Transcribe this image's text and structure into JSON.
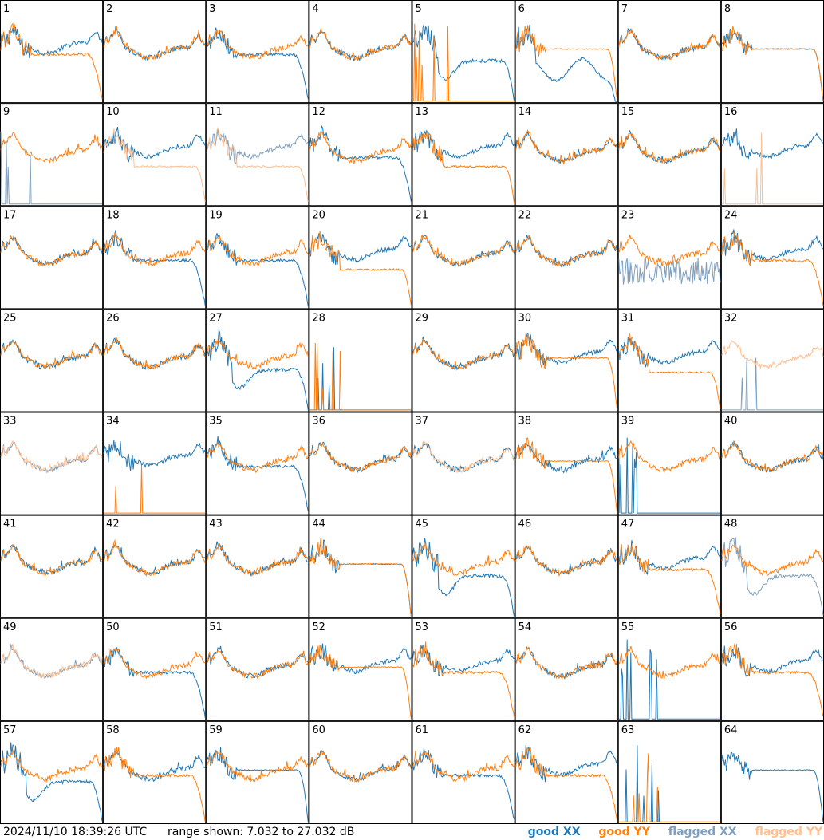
{
  "footer": {
    "timestamp": "2024/11/10 18:39:26 UTC",
    "range": "range shown: 7.032 to 27.032 dB"
  },
  "legend": [
    {
      "label": "good XX",
      "color": "#1f77b4"
    },
    {
      "label": "good YY",
      "color": "#ff7f0e"
    },
    {
      "label": "flagged XX",
      "color": "#7f9fbf"
    },
    {
      "label": "flagged YY",
      "color": "#ffbf8f"
    }
  ],
  "chart_data": {
    "type": "line",
    "grid": {
      "rows": 8,
      "cols": 8
    },
    "yrange_db": [
      7.032,
      27.032
    ],
    "panels": [
      {
        "id": "1",
        "xx": "good",
        "yy": "good",
        "xx_shape": "wide",
        "yy_shape": "rolloff"
      },
      {
        "id": "2",
        "xx": "good",
        "yy": "good",
        "xx_shape": "normal",
        "yy_shape": "normal"
      },
      {
        "id": "3",
        "xx": "good",
        "yy": "good",
        "xx_shape": "rolloff",
        "yy_shape": "normal"
      },
      {
        "id": "4",
        "xx": "good",
        "yy": "good",
        "xx_shape": "normal",
        "yy_shape": "normal"
      },
      {
        "id": "5",
        "xx": "good",
        "yy": "good",
        "xx_shape": "dip",
        "yy_shape": "dead"
      },
      {
        "id": "6",
        "xx": "good",
        "yy": "good",
        "xx_shape": "wavy",
        "yy_shape": "flat"
      },
      {
        "id": "7",
        "xx": "good",
        "yy": "good",
        "xx_shape": "normal",
        "yy_shape": "normal"
      },
      {
        "id": "8",
        "xx": "good",
        "yy": "good",
        "xx_shape": "flat",
        "yy_shape": "flat"
      },
      {
        "id": "9",
        "xx": "flagged",
        "yy": "good",
        "xx_shape": "dead",
        "yy_shape": "normal"
      },
      {
        "id": "10",
        "xx": "good",
        "yy": "flagged",
        "xx_shape": "wide",
        "yy_shape": "lowflat"
      },
      {
        "id": "11",
        "xx": "flagged",
        "yy": "flagged",
        "xx_shape": "wide",
        "yy_shape": "lowflat"
      },
      {
        "id": "12",
        "xx": "good",
        "yy": "good",
        "xx_shape": "rolloff",
        "yy_shape": "normal"
      },
      {
        "id": "13",
        "xx": "good",
        "yy": "good",
        "xx_shape": "wide",
        "yy_shape": "lowflat"
      },
      {
        "id": "14",
        "xx": "good",
        "yy": "good",
        "xx_shape": "normal",
        "yy_shape": "normal"
      },
      {
        "id": "15",
        "xx": "good",
        "yy": "good",
        "xx_shape": "normal",
        "yy_shape": "normal"
      },
      {
        "id": "16",
        "xx": "good",
        "yy": "flagged",
        "xx_shape": "wide",
        "yy_shape": "dead"
      },
      {
        "id": "17",
        "xx": "good",
        "yy": "good",
        "xx_shape": "normal",
        "yy_shape": "normal"
      },
      {
        "id": "18",
        "xx": "good",
        "yy": "good",
        "xx_shape": "rolloff",
        "yy_shape": "normal"
      },
      {
        "id": "19",
        "xx": "good",
        "yy": "good",
        "xx_shape": "rolloff",
        "yy_shape": "normal"
      },
      {
        "id": "20",
        "xx": "good",
        "yy": "good",
        "xx_shape": "wide",
        "yy_shape": "lowflat"
      },
      {
        "id": "21",
        "xx": "good",
        "yy": "good",
        "xx_shape": "normal",
        "yy_shape": "normal"
      },
      {
        "id": "22",
        "xx": "good",
        "yy": "good",
        "xx_shape": "normal",
        "yy_shape": "normal"
      },
      {
        "id": "23",
        "xx": "flagged",
        "yy": "good",
        "xx_shape": "noise",
        "yy_shape": "normal"
      },
      {
        "id": "24",
        "xx": "good",
        "yy": "good",
        "xx_shape": "wide",
        "yy_shape": "rolloff"
      },
      {
        "id": "25",
        "xx": "good",
        "yy": "good",
        "xx_shape": "normal",
        "yy_shape": "normal"
      },
      {
        "id": "26",
        "xx": "good",
        "yy": "good",
        "xx_shape": "normal",
        "yy_shape": "normal"
      },
      {
        "id": "27",
        "xx": "good",
        "yy": "good",
        "xx_shape": "dip",
        "yy_shape": "normal"
      },
      {
        "id": "28",
        "xx": "good",
        "yy": "good",
        "xx_shape": "dead",
        "yy_shape": "dead"
      },
      {
        "id": "29",
        "xx": "good",
        "yy": "good",
        "xx_shape": "normal",
        "yy_shape": "normal"
      },
      {
        "id": "30",
        "xx": "good",
        "yy": "good",
        "xx_shape": "wide",
        "yy_shape": "flat"
      },
      {
        "id": "31",
        "xx": "good",
        "yy": "good",
        "xx_shape": "wide",
        "yy_shape": "lowflat"
      },
      {
        "id": "32",
        "xx": "flagged",
        "yy": "flagged",
        "xx_shape": "dead",
        "yy_shape": "normal"
      },
      {
        "id": "33",
        "xx": "flagged",
        "yy": "flagged",
        "xx_shape": "normal",
        "yy_shape": "normal"
      },
      {
        "id": "34",
        "xx": "good",
        "yy": "good",
        "xx_shape": "wide",
        "yy_shape": "dead"
      },
      {
        "id": "35",
        "xx": "good",
        "yy": "good",
        "xx_shape": "rolloff",
        "yy_shape": "normal"
      },
      {
        "id": "36",
        "xx": "good",
        "yy": "good",
        "xx_shape": "normal",
        "yy_shape": "normal"
      },
      {
        "id": "37",
        "xx": "good",
        "yy": "flagged",
        "xx_shape": "normal",
        "yy_shape": "normal"
      },
      {
        "id": "38",
        "xx": "good",
        "yy": "good",
        "xx_shape": "normal",
        "yy_shape": "flat"
      },
      {
        "id": "39",
        "xx": "good",
        "yy": "good",
        "xx_shape": "dead",
        "yy_shape": "normal"
      },
      {
        "id": "40",
        "xx": "good",
        "yy": "good",
        "xx_shape": "normal",
        "yy_shape": "normal"
      },
      {
        "id": "41",
        "xx": "good",
        "yy": "good",
        "xx_shape": "normal",
        "yy_shape": "normal"
      },
      {
        "id": "42",
        "xx": "good",
        "yy": "good",
        "xx_shape": "normal",
        "yy_shape": "normal"
      },
      {
        "id": "43",
        "xx": "good",
        "yy": "good",
        "xx_shape": "normal",
        "yy_shape": "normal"
      },
      {
        "id": "44",
        "xx": "good",
        "yy": "good",
        "xx_shape": "flat",
        "yy_shape": "flat"
      },
      {
        "id": "45",
        "xx": "good",
        "yy": "good",
        "xx_shape": "dip",
        "yy_shape": "normal"
      },
      {
        "id": "46",
        "xx": "good",
        "yy": "good",
        "xx_shape": "normal",
        "yy_shape": "normal"
      },
      {
        "id": "47",
        "xx": "good",
        "yy": "good",
        "xx_shape": "wide",
        "yy_shape": "rolloff"
      },
      {
        "id": "48",
        "xx": "flagged",
        "yy": "good",
        "xx_shape": "dip",
        "yy_shape": "normal"
      },
      {
        "id": "49",
        "xx": "flagged",
        "yy": "flagged",
        "xx_shape": "normal",
        "yy_shape": "normal"
      },
      {
        "id": "50",
        "xx": "good",
        "yy": "good",
        "xx_shape": "rolloff",
        "yy_shape": "normal"
      },
      {
        "id": "51",
        "xx": "good",
        "yy": "good",
        "xx_shape": "normal",
        "yy_shape": "normal"
      },
      {
        "id": "52",
        "xx": "good",
        "yy": "good",
        "xx_shape": "wide",
        "yy_shape": "flat"
      },
      {
        "id": "53",
        "xx": "good",
        "yy": "good",
        "xx_shape": "wide",
        "yy_shape": "rolloff"
      },
      {
        "id": "54",
        "xx": "good",
        "yy": "good",
        "xx_shape": "normal",
        "yy_shape": "normal"
      },
      {
        "id": "55",
        "xx": "good",
        "yy": "good",
        "xx_shape": "dead",
        "yy_shape": "normal"
      },
      {
        "id": "56",
        "xx": "good",
        "yy": "good",
        "xx_shape": "wide",
        "yy_shape": "rolloff"
      },
      {
        "id": "57",
        "xx": "good",
        "yy": "good",
        "xx_shape": "dip",
        "yy_shape": "normal"
      },
      {
        "id": "58",
        "xx": "good",
        "yy": "good",
        "xx_shape": "normal",
        "yy_shape": "rolloff"
      },
      {
        "id": "59",
        "xx": "good",
        "yy": "good",
        "xx_shape": "flat",
        "yy_shape": "normal"
      },
      {
        "id": "60",
        "xx": "good",
        "yy": "good",
        "xx_shape": "normal",
        "yy_shape": "normal"
      },
      {
        "id": "61",
        "xx": "good",
        "yy": "good",
        "xx_shape": "rolloff",
        "yy_shape": "normal"
      },
      {
        "id": "62",
        "xx": "good",
        "yy": "good",
        "xx_shape": "wide",
        "yy_shape": "rolloff"
      },
      {
        "id": "63",
        "xx": "good",
        "yy": "good",
        "xx_shape": "dead",
        "yy_shape": "dead"
      },
      {
        "id": "64",
        "xx": "good",
        "yy": "good",
        "xx_shape": "flat",
        "yy_shape": "none"
      }
    ]
  }
}
